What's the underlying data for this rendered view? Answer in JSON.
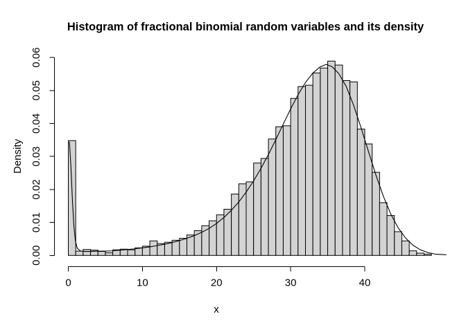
{
  "chart_data": {
    "type": "bar",
    "subtype": "histogram-with-density-curve",
    "title": "Histogram of fractional binomial random variables and its density",
    "xlabel": "x",
    "ylabel": "Density",
    "xlim": [
      0,
      51
    ],
    "ylim": [
      0,
      0.06
    ],
    "grid": "off",
    "legend": "none",
    "x_ticks": [
      {
        "value": 0,
        "label": "0"
      },
      {
        "value": 10,
        "label": "10"
      },
      {
        "value": 20,
        "label": "20"
      },
      {
        "value": 30,
        "label": "30"
      },
      {
        "value": 40,
        "label": "40"
      }
    ],
    "y_ticks": [
      {
        "value": 0.0,
        "label": "0.00"
      },
      {
        "value": 0.01,
        "label": "0.01"
      },
      {
        "value": 0.02,
        "label": "0.02"
      },
      {
        "value": 0.03,
        "label": "0.03"
      },
      {
        "value": 0.04,
        "label": "0.04"
      },
      {
        "value": 0.05,
        "label": "0.05"
      },
      {
        "value": 0.06,
        "label": "0.06"
      }
    ],
    "bin_start": 0,
    "bin_width": 1,
    "bar_fill": "#d3d3d3",
    "bar_stroke": "#000000",
    "line_color": "#000000",
    "text_color": "#000000",
    "background": "#ffffff",
    "bins": [
      0.0348,
      0.0013,
      0.0018,
      0.0016,
      0.0012,
      0.0008,
      0.0017,
      0.0019,
      0.0017,
      0.0023,
      0.0028,
      0.0044,
      0.0036,
      0.004,
      0.0046,
      0.0052,
      0.0062,
      0.0075,
      0.009,
      0.0105,
      0.0123,
      0.014,
      0.0186,
      0.0217,
      0.0223,
      0.028,
      0.0294,
      0.0353,
      0.039,
      0.0393,
      0.0476,
      0.0512,
      0.0516,
      0.0553,
      0.0568,
      0.0589,
      0.0577,
      0.053,
      0.0526,
      0.0383,
      0.0338,
      0.0252,
      0.016,
      0.0121,
      0.0072,
      0.0044,
      0.0014,
      0.0007,
      0.0004
    ],
    "density_curve": [
      [
        0.15,
        0.0345
      ],
      [
        0.35,
        0.027
      ],
      [
        0.55,
        0.017
      ],
      [
        0.75,
        0.009
      ],
      [
        0.95,
        0.0045
      ],
      [
        1.2,
        0.0022
      ],
      [
        1.6,
        0.0014
      ],
      [
        2.2,
        0.0012
      ],
      [
        3,
        0.0012
      ],
      [
        4,
        0.0013
      ],
      [
        5,
        0.0013
      ],
      [
        6,
        0.0014
      ],
      [
        7,
        0.0016
      ],
      [
        8,
        0.0018
      ],
      [
        9,
        0.002
      ],
      [
        10,
        0.0023
      ],
      [
        11,
        0.0026
      ],
      [
        12,
        0.003
      ],
      [
        13,
        0.0034
      ],
      [
        14,
        0.0039
      ],
      [
        15,
        0.0045
      ],
      [
        16,
        0.0052
      ],
      [
        17,
        0.006
      ],
      [
        18,
        0.007
      ],
      [
        19,
        0.0082
      ],
      [
        20,
        0.0097
      ],
      [
        21,
        0.0115
      ],
      [
        22,
        0.0137
      ],
      [
        23,
        0.0162
      ],
      [
        24,
        0.0192
      ],
      [
        25,
        0.0226
      ],
      [
        26,
        0.0264
      ],
      [
        27,
        0.0306
      ],
      [
        28,
        0.0351
      ],
      [
        29,
        0.0398
      ],
      [
        30,
        0.0444
      ],
      [
        31,
        0.0487
      ],
      [
        32,
        0.0524
      ],
      [
        33,
        0.0553
      ],
      [
        34,
        0.0572
      ],
      [
        34.8,
        0.0579
      ],
      [
        35.6,
        0.0572
      ],
      [
        36.5,
        0.0551
      ],
      [
        37.5,
        0.0512
      ],
      [
        38.5,
        0.0455
      ],
      [
        39.5,
        0.0387
      ],
      [
        40.5,
        0.0315
      ],
      [
        41.5,
        0.0244
      ],
      [
        42.5,
        0.018
      ],
      [
        43.5,
        0.0126
      ],
      [
        44.5,
        0.0084
      ],
      [
        45.5,
        0.0053
      ],
      [
        46.5,
        0.0031
      ],
      [
        47.5,
        0.0017
      ],
      [
        48.5,
        0.0009
      ],
      [
        49.5,
        0.0004
      ],
      [
        51,
        0.0002
      ]
    ]
  }
}
